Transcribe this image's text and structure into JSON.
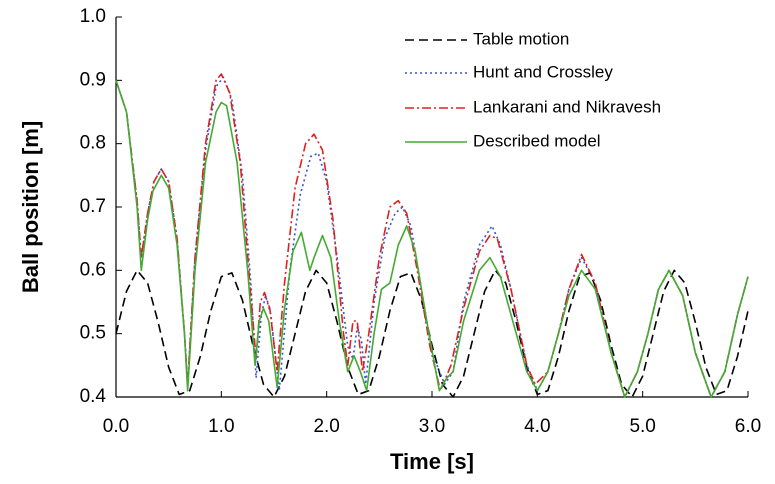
{
  "chart_data": {
    "type": "line",
    "xlabel": "Time [s]",
    "ylabel": "Ball position [m]",
    "xlim": [
      0,
      6
    ],
    "ylim": [
      0.4,
      1
    ],
    "xticks": [
      {
        "value": 0,
        "label": "0.0"
      },
      {
        "value": 1,
        "label": "1.0"
      },
      {
        "value": 2,
        "label": "2.0"
      },
      {
        "value": 3,
        "label": "3.0"
      },
      {
        "value": 4,
        "label": "4.0"
      },
      {
        "value": 5,
        "label": "5.0"
      },
      {
        "value": 6,
        "label": "6.0"
      }
    ],
    "yticks": [
      0.4,
      0.5,
      0.6,
      0.7,
      0.8,
      0.9,
      {
        "value": 1,
        "label": "1.0"
      }
    ],
    "grid": false,
    "legend": "upper right",
    "series": [
      {
        "name": "Table motion",
        "color": "#000000",
        "line_style": "dashed",
        "x": [
          0,
          0.1,
          0.2,
          0.3,
          0.4,
          0.5,
          0.6,
          0.7,
          0.8,
          0.9,
          1,
          1.1,
          1.2,
          1.3,
          1.4,
          1.5,
          1.6,
          1.7,
          1.8,
          1.9,
          2,
          2.1,
          2.2,
          2.3,
          2.4,
          2.5,
          2.6,
          2.7,
          2.8,
          2.9,
          3,
          3.1,
          3.2,
          3.3,
          3.4,
          3.5,
          3.6,
          3.7,
          3.8,
          3.9,
          4,
          4.1,
          4.2,
          4.3,
          4.4,
          4.5,
          4.6,
          4.7,
          4.8,
          4.9,
          5,
          5.1,
          5.2,
          5.3,
          5.4,
          5.5,
          5.6,
          5.7,
          5.8,
          5.9,
          6
        ],
        "values": [
          0.5,
          0.567,
          0.6,
          0.58,
          0.518,
          0.447,
          0.404,
          0.41,
          0.464,
          0.536,
          0.59,
          0.596,
          0.553,
          0.482,
          0.42,
          0.4,
          0.433,
          0.5,
          0.567,
          0.6,
          0.58,
          0.518,
          0.447,
          0.404,
          0.41,
          0.464,
          0.536,
          0.59,
          0.596,
          0.553,
          0.482,
          0.42,
          0.4,
          0.433,
          0.5,
          0.567,
          0.6,
          0.58,
          0.518,
          0.447,
          0.404,
          0.41,
          0.464,
          0.536,
          0.59,
          0.596,
          0.553,
          0.482,
          0.42,
          0.4,
          0.433,
          0.5,
          0.567,
          0.6,
          0.58,
          0.518,
          0.447,
          0.404,
          0.41,
          0.464,
          0.536
        ]
      },
      {
        "name": "Hunt and Crossley",
        "color": "#3355cc",
        "line_style": "dotted",
        "x": [
          0,
          0.1,
          0.2,
          0.24,
          0.3,
          0.36,
          0.43,
          0.5,
          0.58,
          0.65,
          0.68,
          0.75,
          0.85,
          0.95,
          1.02,
          1.1,
          1.2,
          1.28,
          1.33,
          1.38,
          1.42,
          1.47,
          1.55,
          1.65,
          1.75,
          1.85,
          1.92,
          2,
          2.1,
          2.2,
          2.25,
          2.29,
          2.33,
          2.37,
          2.45,
          2.55,
          2.65,
          2.72,
          2.8,
          2.9,
          3,
          3.12,
          3.2,
          3.3,
          3.45,
          3.57,
          3.65,
          3.75,
          3.9,
          4,
          4.1,
          4.2,
          4.3,
          4.42,
          4.55,
          4.7,
          4.83,
          4.95,
          5.05,
          5.15,
          5.25,
          5.38,
          5.5,
          5.65,
          5.78,
          5.9,
          6
        ],
        "values": [
          0.9,
          0.85,
          0.71,
          0.62,
          0.69,
          0.74,
          0.76,
          0.74,
          0.65,
          0.5,
          0.42,
          0.62,
          0.79,
          0.89,
          0.905,
          0.87,
          0.75,
          0.58,
          0.43,
          0.53,
          0.56,
          0.53,
          0.41,
          0.6,
          0.72,
          0.78,
          0.785,
          0.74,
          0.62,
          0.48,
          0.46,
          0.51,
          0.49,
          0.42,
          0.55,
          0.65,
          0.69,
          0.7,
          0.67,
          0.57,
          0.47,
          0.42,
          0.44,
          0.55,
          0.64,
          0.67,
          0.64,
          0.57,
          0.45,
          0.41,
          0.44,
          0.5,
          0.57,
          0.62,
          0.58,
          0.47,
          0.4,
          0.44,
          0.5,
          0.57,
          0.6,
          0.56,
          0.47,
          0.4,
          0.44,
          0.53,
          0.59
        ]
      },
      {
        "name": "Lankarani and Nikravesh",
        "color": "#e02020",
        "line_style": "dashdot",
        "x": [
          0,
          0.1,
          0.2,
          0.24,
          0.3,
          0.36,
          0.43,
          0.5,
          0.58,
          0.65,
          0.68,
          0.75,
          0.85,
          0.95,
          1,
          1.08,
          1.18,
          1.27,
          1.33,
          1.37,
          1.41,
          1.46,
          1.53,
          1.6,
          1.7,
          1.8,
          1.88,
          1.96,
          2.06,
          2.16,
          2.2,
          2.25,
          2.29,
          2.34,
          2.4,
          2.5,
          2.6,
          2.68,
          2.76,
          2.86,
          2.98,
          3.08,
          3.18,
          3.3,
          3.45,
          3.55,
          3.62,
          3.75,
          3.9,
          3.98,
          4.1,
          4.2,
          4.3,
          4.42,
          4.55,
          4.7,
          4.83,
          4.95,
          5.05,
          5.15,
          5.25,
          5.38,
          5.5,
          5.65,
          5.78,
          5.9,
          6
        ],
        "values": [
          0.9,
          0.85,
          0.71,
          0.62,
          0.69,
          0.74,
          0.76,
          0.74,
          0.65,
          0.5,
          0.42,
          0.62,
          0.8,
          0.9,
          0.91,
          0.88,
          0.77,
          0.58,
          0.46,
          0.55,
          0.565,
          0.54,
          0.44,
          0.58,
          0.73,
          0.8,
          0.815,
          0.79,
          0.68,
          0.5,
          0.45,
          0.52,
          0.52,
          0.44,
          0.5,
          0.62,
          0.7,
          0.71,
          0.69,
          0.6,
          0.48,
          0.41,
          0.45,
          0.54,
          0.63,
          0.655,
          0.65,
          0.57,
          0.45,
          0.42,
          0.44,
          0.5,
          0.57,
          0.625,
          0.58,
          0.47,
          0.4,
          0.44,
          0.5,
          0.57,
          0.6,
          0.56,
          0.47,
          0.4,
          0.44,
          0.53,
          0.59
        ]
      },
      {
        "name": "Described model",
        "color": "#44aa33",
        "line_style": "solid",
        "x": [
          0,
          0.1,
          0.2,
          0.24,
          0.3,
          0.35,
          0.43,
          0.5,
          0.58,
          0.65,
          0.68,
          0.75,
          0.85,
          0.95,
          1,
          1.05,
          1.15,
          1.25,
          1.32,
          1.36,
          1.4,
          1.45,
          1.53,
          1.6,
          1.68,
          1.76,
          1.84,
          1.88,
          1.96,
          2.04,
          2.12,
          2.2,
          2.26,
          2.32,
          2.38,
          2.45,
          2.52,
          2.6,
          2.68,
          2.76,
          2.84,
          2.95,
          3.07,
          3.14,
          3.2,
          3.3,
          3.45,
          3.55,
          3.65,
          3.75,
          3.9,
          4,
          4.1,
          4.2,
          4.3,
          4.42,
          4.55,
          4.7,
          4.83,
          4.95,
          5.05,
          5.15,
          5.25,
          5.38,
          5.5,
          5.65,
          5.78,
          5.9,
          6
        ],
        "values": [
          0.9,
          0.85,
          0.7,
          0.6,
          0.68,
          0.725,
          0.75,
          0.73,
          0.64,
          0.5,
          0.41,
          0.6,
          0.77,
          0.85,
          0.865,
          0.86,
          0.77,
          0.6,
          0.45,
          0.52,
          0.54,
          0.52,
          0.415,
          0.54,
          0.63,
          0.66,
          0.6,
          0.62,
          0.655,
          0.62,
          0.52,
          0.44,
          0.465,
          0.44,
          0.41,
          0.5,
          0.57,
          0.58,
          0.64,
          0.67,
          0.63,
          0.52,
          0.41,
          0.43,
          0.44,
          0.52,
          0.6,
          0.62,
          0.59,
          0.53,
          0.44,
          0.41,
          0.44,
          0.5,
          0.56,
          0.6,
          0.57,
          0.47,
          0.4,
          0.44,
          0.5,
          0.57,
          0.6,
          0.56,
          0.47,
          0.4,
          0.44,
          0.53,
          0.59
        ]
      }
    ]
  }
}
